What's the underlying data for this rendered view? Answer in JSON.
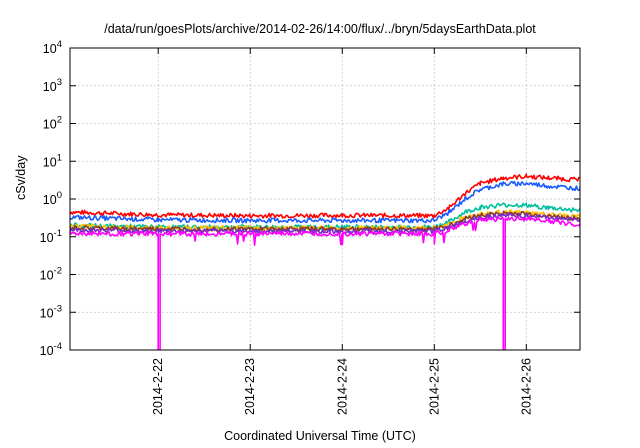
{
  "chart_data": {
    "type": "line",
    "title": "/data/run/goesPlots/archive/2014-02-26/14:00/flux/../bryn/5daysEarthData.plot",
    "xlabel": "Coordinated Universal Time (UTC)",
    "ylabel": "cSv/day",
    "yscale": "log",
    "ylim": [
      0.0001,
      10000
    ],
    "xlim": [
      "2014-02-21 01:00",
      "2014-02-26 14:00"
    ],
    "xticks": [
      "2014-2-22",
      "2014-2-23",
      "2014-2-24",
      "2014-2-25",
      "2014-2-26"
    ],
    "yticks": [
      {
        "base": "10",
        "exp": "-4"
      },
      {
        "base": "10",
        "exp": "-3"
      },
      {
        "base": "10",
        "exp": "-2"
      },
      {
        "base": "10",
        "exp": "-1"
      },
      {
        "base": "10",
        "exp": "0"
      },
      {
        "base": "10",
        "exp": "1"
      },
      {
        "base": "10",
        "exp": "2"
      },
      {
        "base": "10",
        "exp": "3"
      },
      {
        "base": "10",
        "exp": "4"
      }
    ],
    "grid": true,
    "legend": "none",
    "series": [
      {
        "color": "#ff0000",
        "x": [
          "2014-02-21 01:00",
          "2014-02-22 00:00",
          "2014-02-23 00:00",
          "2014-02-24 00:00",
          "2014-02-25 00:00",
          "2014-02-25 04:00",
          "2014-02-25 08:00",
          "2014-02-25 12:00",
          "2014-02-25 18:00",
          "2014-02-26 00:00",
          "2014-02-26 06:00",
          "2014-02-26 14:00"
        ],
        "y": [
          0.45,
          0.38,
          0.36,
          0.37,
          0.36,
          0.6,
          1.4,
          2.6,
          3.6,
          4.0,
          3.6,
          3.2
        ]
      },
      {
        "color": "#1a5cff",
        "x": [
          "2014-02-21 01:00",
          "2014-02-22 00:00",
          "2014-02-23 00:00",
          "2014-02-24 00:00",
          "2014-02-25 00:00",
          "2014-02-25 04:00",
          "2014-02-25 08:00",
          "2014-02-25 12:00",
          "2014-02-25 18:00",
          "2014-02-26 00:00",
          "2014-02-26 06:00",
          "2014-02-26 14:00"
        ],
        "y": [
          0.33,
          0.28,
          0.27,
          0.27,
          0.27,
          0.45,
          1.0,
          1.8,
          2.5,
          2.6,
          2.2,
          1.9
        ]
      },
      {
        "color": "#00c0a0",
        "x": [
          "2014-02-21 01:00",
          "2014-02-22 00:00",
          "2014-02-23 00:00",
          "2014-02-24 00:00",
          "2014-02-25 00:00",
          "2014-02-25 04:00",
          "2014-02-25 08:00",
          "2014-02-25 12:00",
          "2014-02-25 18:00",
          "2014-02-26 00:00",
          "2014-02-26 06:00",
          "2014-02-26 14:00"
        ],
        "y": [
          0.2,
          0.18,
          0.18,
          0.18,
          0.18,
          0.25,
          0.45,
          0.6,
          0.7,
          0.68,
          0.58,
          0.5
        ]
      },
      {
        "color": "#ffc000",
        "x": [
          "2014-02-21 01:00",
          "2014-02-22 00:00",
          "2014-02-23 00:00",
          "2014-02-24 00:00",
          "2014-02-25 00:00",
          "2014-02-25 04:00",
          "2014-02-25 08:00",
          "2014-02-25 12:00",
          "2014-02-25 18:00",
          "2014-02-26 00:00",
          "2014-02-26 06:00",
          "2014-02-26 14:00"
        ],
        "y": [
          0.19,
          0.17,
          0.17,
          0.17,
          0.17,
          0.22,
          0.33,
          0.4,
          0.45,
          0.43,
          0.38,
          0.34
        ]
      },
      {
        "color": "#8b3a2a",
        "x": [
          "2014-02-21 01:00",
          "2014-02-22 00:00",
          "2014-02-23 00:00",
          "2014-02-24 00:00",
          "2014-02-25 00:00",
          "2014-02-25 04:00",
          "2014-02-25 08:00",
          "2014-02-25 12:00",
          "2014-02-25 18:00",
          "2014-02-26 00:00",
          "2014-02-26 06:00",
          "2014-02-26 14:00"
        ],
        "y": [
          0.17,
          0.16,
          0.16,
          0.16,
          0.16,
          0.2,
          0.3,
          0.37,
          0.42,
          0.4,
          0.35,
          0.3
        ]
      },
      {
        "color": "#7a2cc8",
        "x": [
          "2014-02-21 01:00",
          "2014-02-22 00:00",
          "2014-02-23 00:00",
          "2014-02-24 00:00",
          "2014-02-25 00:00",
          "2014-02-25 04:00",
          "2014-02-25 08:00",
          "2014-02-25 12:00",
          "2014-02-25 18:00",
          "2014-02-26 00:00",
          "2014-02-26 06:00",
          "2014-02-26 14:00"
        ],
        "y": [
          0.15,
          0.14,
          0.14,
          0.14,
          0.14,
          0.18,
          0.26,
          0.33,
          0.37,
          0.36,
          0.32,
          0.28
        ]
      },
      {
        "color": "#ff00ff",
        "x": [
          "2014-02-21 01:00",
          "2014-02-22 00:00",
          "2014-02-22 00:00",
          "2014-02-22 00:30",
          "2014-02-22 00:30",
          "2014-02-23 00:00",
          "2014-02-24 00:00",
          "2014-02-25 00:00",
          "2014-02-25 04:00",
          "2014-02-25 08:00",
          "2014-02-25 12:00",
          "2014-02-25 18:00",
          "2014-02-25 18:00",
          "2014-02-25 18:30",
          "2014-02-25 18:30",
          "2014-02-26 00:00",
          "2014-02-26 06:00",
          "2014-02-26 14:00"
        ],
        "y": [
          0.12,
          0.12,
          0.0001,
          0.0001,
          0.12,
          0.12,
          0.12,
          0.12,
          0.15,
          0.22,
          0.28,
          0.3,
          0.0001,
          0.0001,
          0.3,
          0.3,
          0.26,
          0.2
        ]
      }
    ]
  }
}
